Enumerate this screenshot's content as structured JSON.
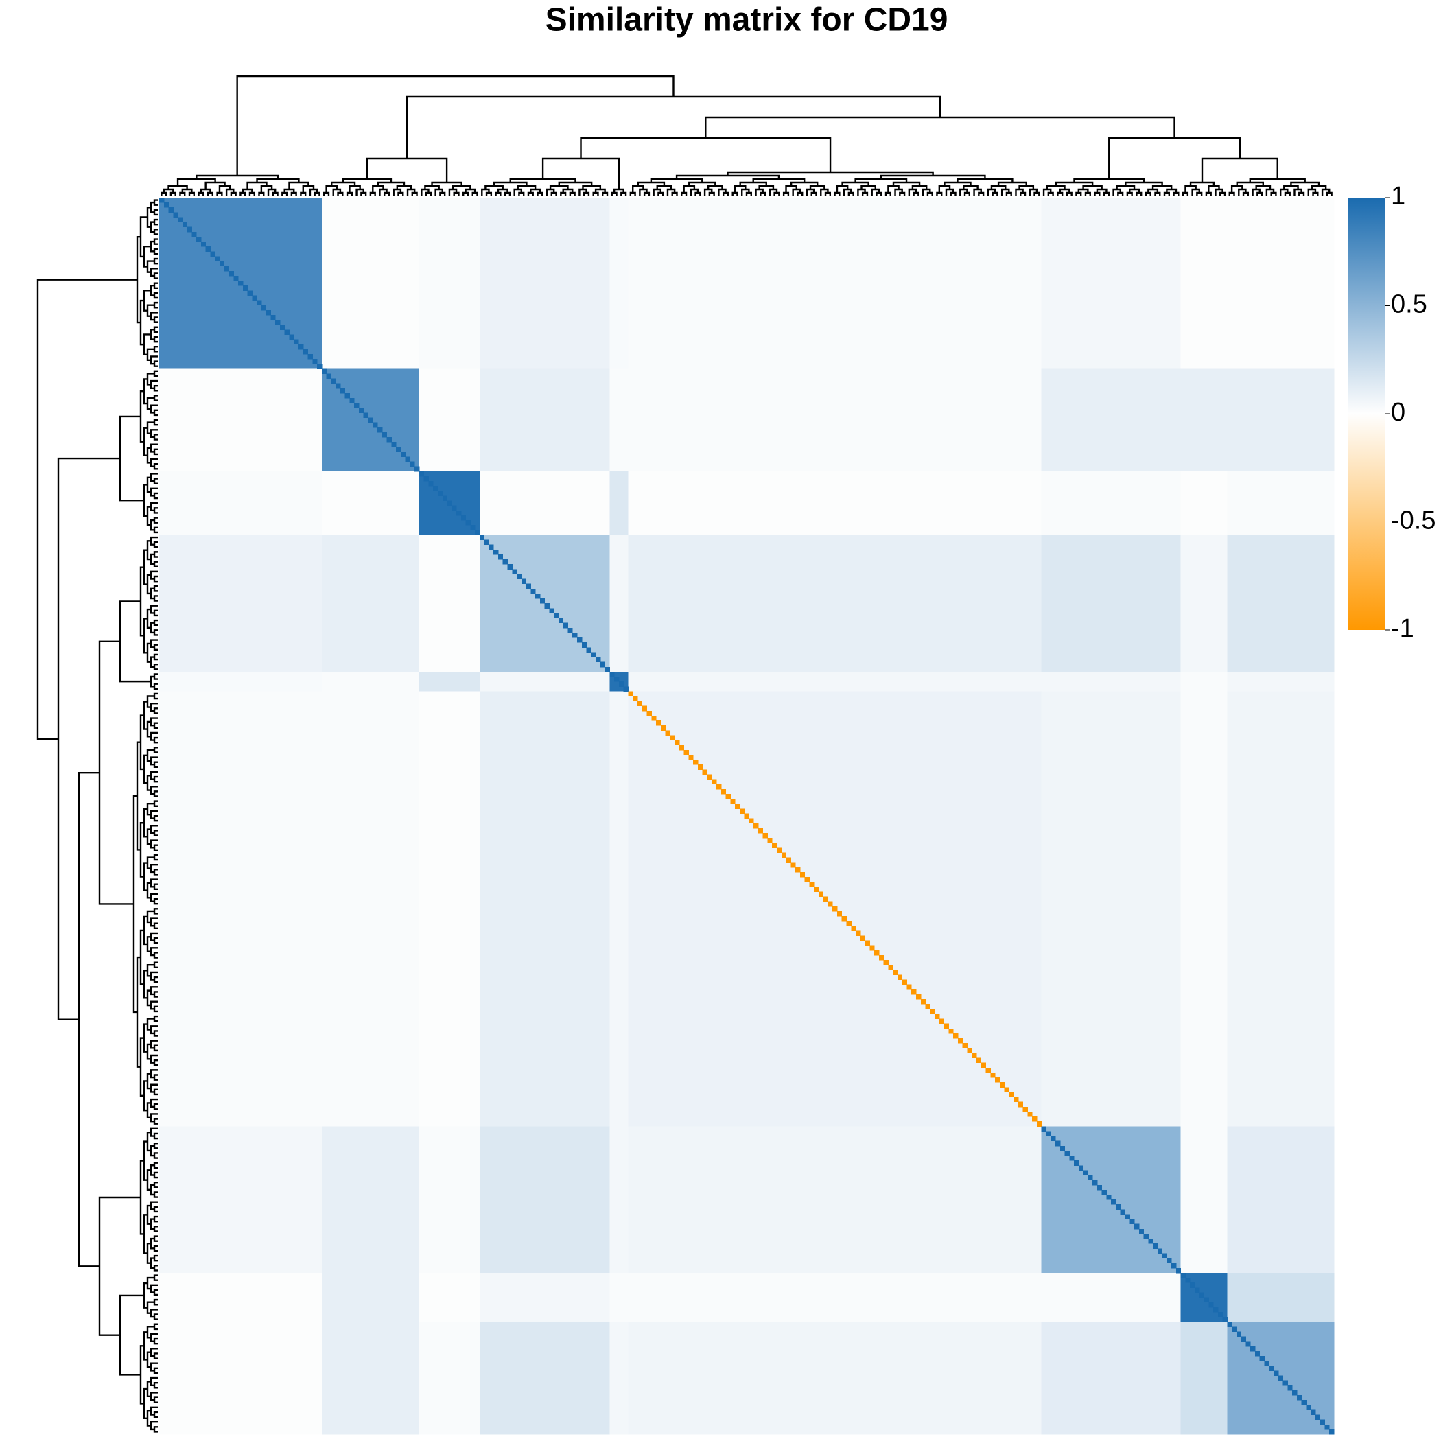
{
  "chart_data": {
    "type": "heatmap",
    "title": "Similarity matrix for CD19",
    "cluster_sizes": [
      35,
      21,
      13,
      28,
      4,
      89,
      30,
      10,
      23
    ],
    "matrix": [
      [
        0.8,
        0.01,
        0.02,
        0.08,
        0.03,
        0.02,
        0.05,
        0.01,
        0.01
      ],
      [
        0.01,
        0.75,
        0.01,
        0.1,
        0.02,
        0.02,
        0.1,
        0.1,
        0.1
      ],
      [
        0.02,
        0.01,
        0.95,
        0.01,
        0.15,
        0.01,
        0.02,
        0.01,
        0.02
      ],
      [
        0.08,
        0.1,
        0.01,
        0.35,
        0.05,
        0.1,
        0.15,
        0.05,
        0.15
      ],
      [
        0.03,
        0.02,
        0.15,
        0.05,
        0.95,
        0.05,
        0.05,
        0.02,
        0.05
      ],
      [
        0.02,
        0.02,
        0.01,
        0.1,
        0.05,
        0.08,
        0.06,
        0.02,
        0.06
      ],
      [
        0.05,
        0.1,
        0.02,
        0.15,
        0.05,
        0.06,
        0.5,
        0.02,
        0.12
      ],
      [
        0.01,
        0.1,
        0.01,
        0.05,
        0.02,
        0.02,
        0.02,
        0.95,
        0.2
      ],
      [
        0.01,
        0.1,
        0.02,
        0.15,
        0.05,
        0.06,
        0.12,
        0.2,
        0.55
      ]
    ],
    "diagonal": [
      1,
      1,
      1,
      1,
      1,
      -1,
      1,
      1,
      1
    ],
    "zlim": [
      -1,
      1
    ],
    "colors": [
      "#ff9800",
      "#fefefe",
      "#1a6baf"
    ],
    "zticks": [
      1,
      0.5,
      0,
      -0.5,
      -1
    ]
  }
}
